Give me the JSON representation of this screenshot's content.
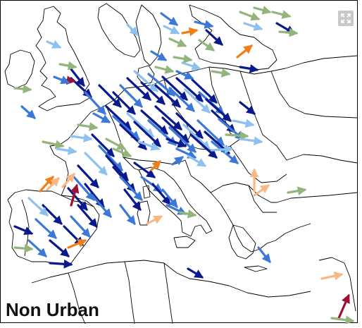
{
  "map": {
    "label": "Non Urban",
    "expand_button": {
      "icon": "expand-icon"
    }
  },
  "colors": {
    "dark_blue": "#0a1a8c",
    "mid_blue": "#3b78d8",
    "light_blue": "#8ec1ee",
    "green": "#93b47a",
    "orange": "#f07f1a",
    "light_orange": "#f8b883",
    "dark_red": "#9e1030",
    "border": "#000000"
  }
}
